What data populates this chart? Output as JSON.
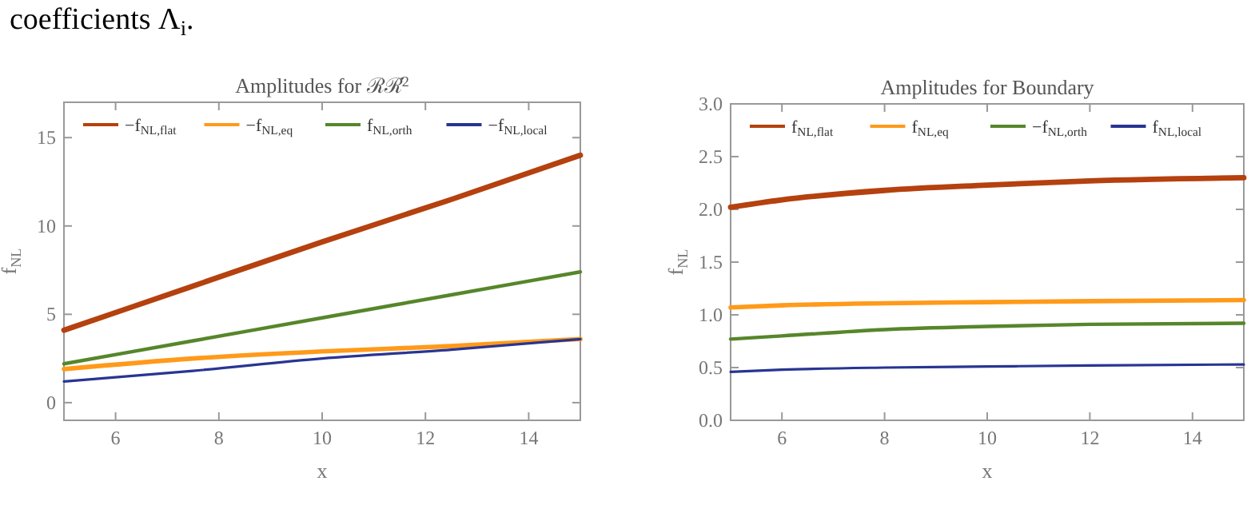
{
  "chart_data": [
    {
      "type": "line",
      "title": "Amplitudes for ℛℛ̇$^{2}$",
      "xlabel": "x",
      "ylabel": "f$_{NL}$",
      "annotations": [
        "coefficients Λ$_{i}$."
      ],
      "x": [
        5,
        7.5,
        10,
        12.5,
        15
      ],
      "xlim": [
        5,
        15
      ],
      "ylim": [
        -1,
        17
      ],
      "xticks": [
        6,
        8,
        10,
        12,
        14
      ],
      "yticks": [
        0,
        5,
        10,
        15
      ],
      "legend": "top",
      "grid": false,
      "series": [
        {
          "name": "−f$_{NL,flat}$",
          "color": "#b5410f",
          "values": [
            4.1,
            6.6,
            9.1,
            11.5,
            14.0
          ]
        },
        {
          "name": "−f$_{NL,eq}$",
          "color": "#ff9a1a",
          "values": [
            1.9,
            2.5,
            2.9,
            3.2,
            3.6
          ]
        },
        {
          "name": "f$_{NL,orth}$",
          "color": "#56862a",
          "values": [
            2.2,
            3.5,
            4.8,
            6.1,
            7.4
          ]
        },
        {
          "name": "−f$_{NL,local}$",
          "color": "#283593",
          "values": [
            1.2,
            1.8,
            2.5,
            3.0,
            3.6
          ]
        }
      ]
    },
    {
      "type": "line",
      "title": "Amplitudes for Boundary",
      "xlabel": "x",
      "ylabel": "f$_{NL}$",
      "x": [
        5,
        6,
        8,
        10,
        12,
        15
      ],
      "xlim": [
        5,
        15
      ],
      "ylim": [
        0,
        3
      ],
      "xticks": [
        6,
        8,
        10,
        12,
        14
      ],
      "yticks": [
        {
          "value": 0,
          "label": "0.0"
        },
        {
          "value": 0.5,
          "label": "0.5"
        },
        {
          "value": 1,
          "label": "1.0"
        },
        {
          "value": 1.5,
          "label": "1.5"
        },
        {
          "value": 2,
          "label": "2.0"
        },
        {
          "value": 2.5,
          "label": "2.5"
        },
        {
          "value": 3,
          "label": "3.0"
        }
      ],
      "legend": "top",
      "grid": false,
      "series": [
        {
          "name": "f$_{NL,flat}$",
          "color": "#b5410f",
          "values": [
            2.02,
            2.09,
            2.18,
            2.23,
            2.27,
            2.3
          ]
        },
        {
          "name": "f$_{NL,eq}$",
          "color": "#ff9a1a",
          "values": [
            1.07,
            1.09,
            1.11,
            1.12,
            1.13,
            1.14
          ]
        },
        {
          "name": "−f$_{NL,orth}$",
          "color": "#56862a",
          "values": [
            0.77,
            0.8,
            0.86,
            0.89,
            0.91,
            0.92
          ]
        },
        {
          "name": "f$_{NL,local}$",
          "color": "#283593",
          "values": [
            0.46,
            0.48,
            0.5,
            0.51,
            0.52,
            0.53
          ]
        }
      ]
    }
  ]
}
